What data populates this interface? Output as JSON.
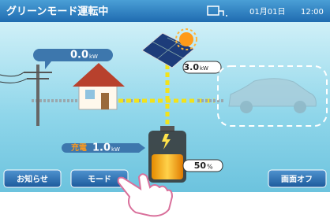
{
  "header": {
    "title": "グリーンモード運転中",
    "date": "01月01日",
    "time": "12:00"
  },
  "readings": {
    "grid": {
      "value": "0.0",
      "unit": "kW"
    },
    "solar": {
      "value": "3.0",
      "unit": "kW"
    },
    "battery": {
      "label": "充電",
      "value": "1.0",
      "unit": "kW"
    },
    "battery_level": {
      "value": "50",
      "unit": "%"
    }
  },
  "buttons": [
    "お知らせ",
    "モード",
    "画面オフ"
  ]
}
